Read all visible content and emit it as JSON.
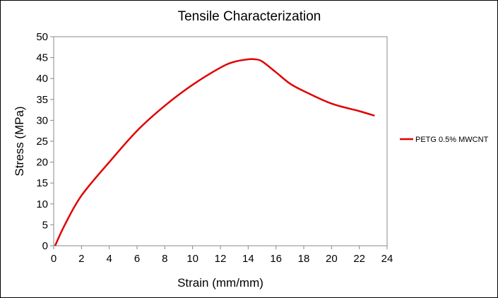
{
  "chart_data": {
    "type": "line",
    "title": "Tensile Characterization",
    "xlabel": "Strain (mm/mm)",
    "ylabel": "Stress (MPa)",
    "xlim": [
      0,
      24
    ],
    "ylim": [
      0,
      50
    ],
    "x_ticks": [
      0,
      2,
      4,
      6,
      8,
      10,
      12,
      14,
      16,
      18,
      20,
      22,
      24
    ],
    "y_ticks": [
      0,
      5,
      10,
      15,
      20,
      25,
      30,
      35,
      40,
      45,
      50
    ],
    "grid": false,
    "legend_position": "right",
    "series": [
      {
        "name": "PETG 0.5% MWCNT",
        "color": "#e00000",
        "x": [
          0.1,
          0.8,
          2,
          4,
          6,
          8,
          10,
          12,
          13,
          14,
          14.5,
          15,
          16,
          17,
          18,
          20,
          22,
          23.1
        ],
        "y": [
          0,
          5,
          12,
          20,
          27.5,
          33.5,
          38.5,
          42.6,
          44,
          44.6,
          44.6,
          44.1,
          41.5,
          38.8,
          37,
          34,
          32.2,
          31.1
        ]
      }
    ]
  }
}
